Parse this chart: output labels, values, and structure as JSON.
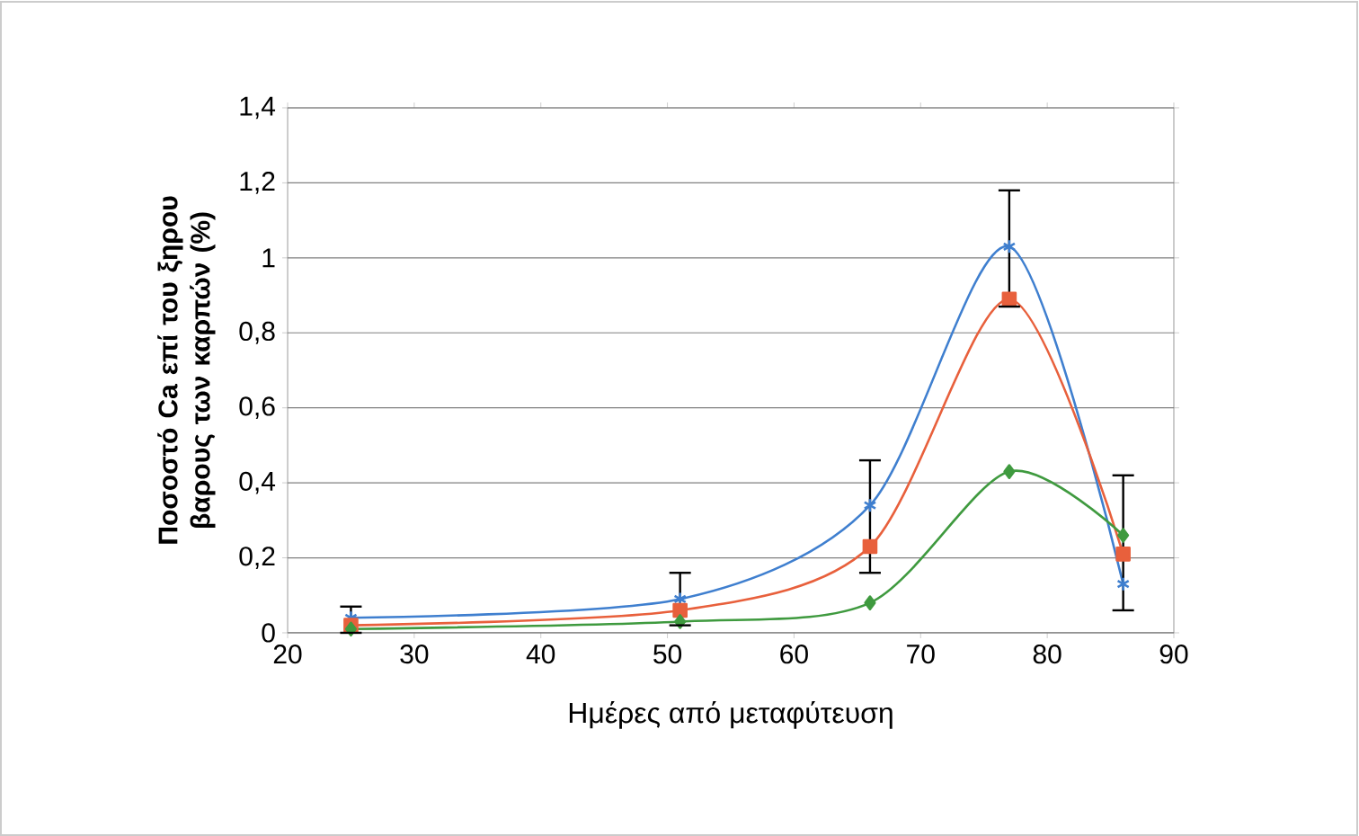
{
  "chart_data": {
    "type": "line",
    "xlabel": "Ημέρες από μεταφύτευση",
    "ylabel": "Ποσοστό Ca επί του ξηρου βαρους των καρπών (%)",
    "x": [
      25,
      51,
      66,
      77,
      86
    ],
    "xlim": [
      20,
      90
    ],
    "xticks": [
      20,
      30,
      40,
      50,
      60,
      70,
      80,
      90
    ],
    "ylim": [
      0,
      1.4
    ],
    "yticks": [
      {
        "value": 0,
        "label": "0"
      },
      {
        "value": 0.2,
        "label": "0,2"
      },
      {
        "value": 0.4,
        "label": "0,4"
      },
      {
        "value": 0.6,
        "label": "0,6"
      },
      {
        "value": 0.8,
        "label": "0,8"
      },
      {
        "value": 1,
        "label": "1"
      },
      {
        "value": 1.2,
        "label": "1,2"
      },
      {
        "value": 1.4,
        "label": "1,4"
      }
    ],
    "grid": "y",
    "series": [
      {
        "color": "#3f7fcf",
        "marker": "cross",
        "values": [
          0.04,
          0.09,
          0.34,
          1.03,
          0.13
        ],
        "errors": [
          [
            0.0,
            0.07
          ],
          [
            0.02,
            0.16
          ],
          [
            0.16,
            0.46
          ],
          [
            0.87,
            1.18
          ],
          [
            0.06,
            0.42
          ]
        ]
      },
      {
        "color": "#e8603c",
        "marker": "square",
        "values": [
          0.02,
          0.06,
          0.23,
          0.89,
          0.21
        ]
      },
      {
        "color": "#3f9a3f",
        "marker": "diamond",
        "values": [
          0.01,
          0.03,
          0.08,
          0.43,
          0.26
        ]
      }
    ]
  }
}
